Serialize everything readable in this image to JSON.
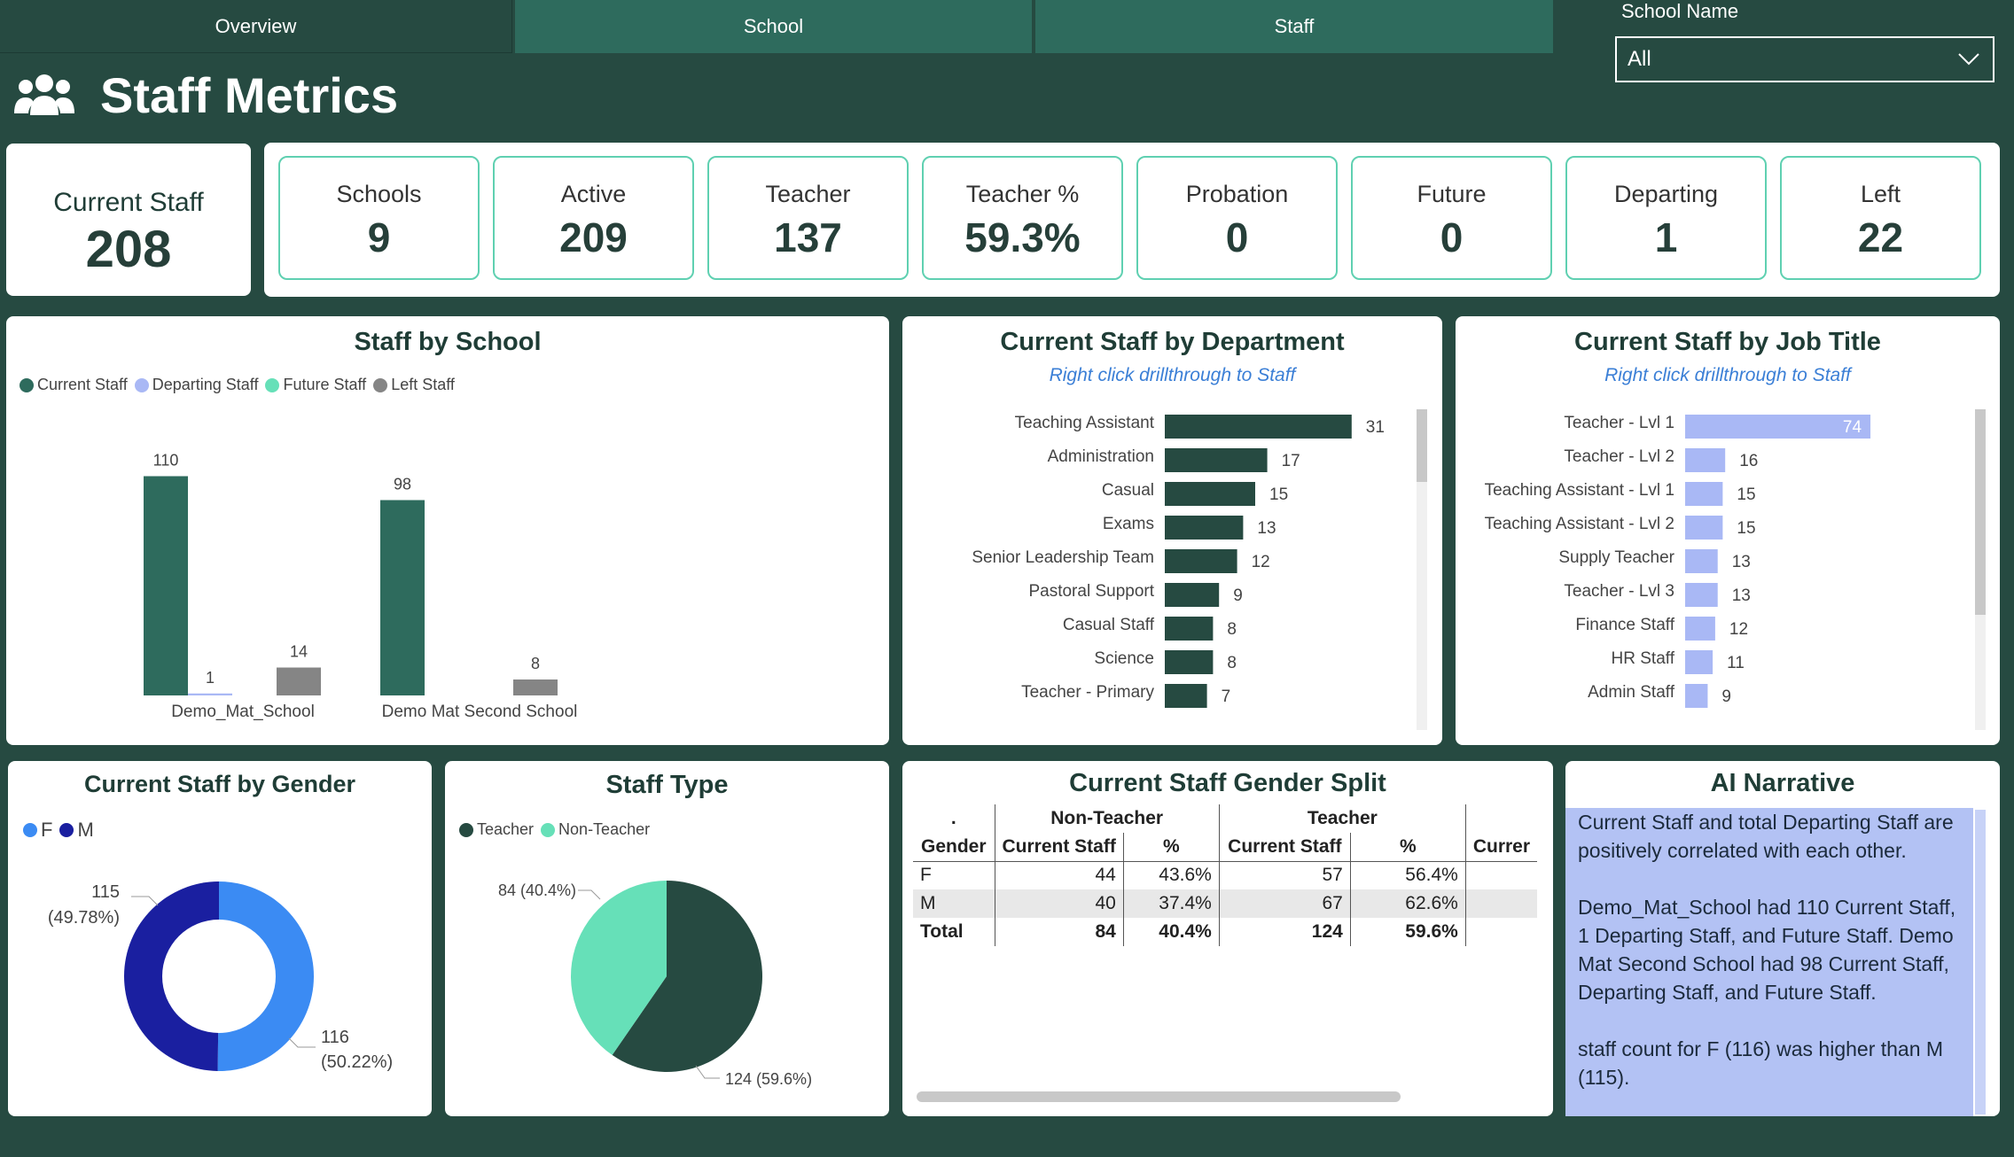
{
  "nav": {
    "tabs": [
      "Overview",
      "School",
      "Staff"
    ],
    "filter_label": "School Name",
    "filter_value": "All"
  },
  "header": {
    "title": "Staff Metrics"
  },
  "kpis": {
    "current_staff_label": "Current Staff",
    "current_staff_value": "208",
    "items": [
      {
        "label": "Schools",
        "value": "9"
      },
      {
        "label": "Active",
        "value": "209"
      },
      {
        "label": "Teacher",
        "value": "137"
      },
      {
        "label": "Teacher %",
        "value": "59.3%"
      },
      {
        "label": "Probation",
        "value": "0"
      },
      {
        "label": "Future",
        "value": "0"
      },
      {
        "label": "Departing",
        "value": "1"
      },
      {
        "label": "Left",
        "value": "22"
      }
    ]
  },
  "colors": {
    "background": "#264a41",
    "tab": "#2e6b5d",
    "current": "#2e6b5d",
    "departing": "#a9b8f5",
    "future": "#66e0b8",
    "left": "#858585",
    "dept_bar": "#264a41",
    "job_bar": "#a9b8f5",
    "female": "#3b8bf3",
    "male": "#1a1fa0",
    "teacher": "#264a41",
    "non_teacher": "#66e0b8",
    "narrative_bg": "#b3c2f4"
  },
  "staff_by_school": {
    "title": "Staff by School",
    "legend": [
      "Current Staff",
      "Departing Staff",
      "Future Staff",
      "Left Staff"
    ]
  },
  "dept_chart": {
    "title": "Current Staff by Department",
    "subtitle": "Right click drillthrough to Staff"
  },
  "job_chart": {
    "title": "Current Staff by Job Title",
    "subtitle": "Right click drillthrough to Staff"
  },
  "gender_chart": {
    "title": "Current Staff by Gender",
    "legend": [
      "F",
      "M"
    ]
  },
  "type_chart": {
    "title": "Staff Type",
    "legend": [
      "Teacher",
      "Non-Teacher"
    ]
  },
  "gender_split": {
    "title": "Current Staff Gender Split",
    "corner": ".",
    "groups": [
      "Non-Teacher",
      "Teacher"
    ],
    "headers": [
      "Gender",
      "Current Staff",
      "%",
      "Current Staff",
      "%",
      "Currer"
    ],
    "rows": [
      {
        "g": "F",
        "a": "44",
        "b": "43.6%",
        "c": "57",
        "d": "56.4%"
      },
      {
        "g": "M",
        "a": "40",
        "b": "37.4%",
        "c": "67",
        "d": "62.6%"
      },
      {
        "g": "Total",
        "a": "84",
        "b": "40.4%",
        "c": "124",
        "d": "59.6%"
      }
    ]
  },
  "narrative": {
    "title": "AI Narrative",
    "paragraphs": [
      "Current Staff and total Departing Staff are positively correlated with each other.",
      "Demo_Mat_School had 110 Current Staff, 1 Departing Staff, and  Future Staff. Demo Mat Second School had 98 Current Staff, Departing Staff, and  Future Staff.",
      "staff count for F (116) was higher than M (115)."
    ]
  },
  "chart_data": [
    {
      "type": "bar",
      "title": "Staff by School",
      "categories": [
        "Demo_Mat_School",
        "Demo Mat Second School"
      ],
      "series": [
        {
          "name": "Current Staff",
          "values": [
            110,
            98
          ]
        },
        {
          "name": "Departing Staff",
          "values": [
            1,
            null
          ]
        },
        {
          "name": "Future Staff",
          "values": [
            null,
            null
          ]
        },
        {
          "name": "Left Staff",
          "values": [
            14,
            8
          ]
        }
      ],
      "legend": "top-left",
      "ylim": [
        0,
        120
      ]
    },
    {
      "type": "bar",
      "orientation": "horizontal",
      "title": "Current Staff by Department",
      "categories": [
        "Teaching Assistant",
        "Administration",
        "Casual",
        "Exams",
        "Senior Leadership Team",
        "Pastoral Support",
        "Casual Staff",
        "Science",
        "Teacher - Primary"
      ],
      "values": [
        31,
        17,
        15,
        13,
        12,
        9,
        8,
        8,
        7
      ],
      "xlim": [
        0,
        35
      ]
    },
    {
      "type": "bar",
      "orientation": "horizontal",
      "title": "Current Staff by Job Title",
      "categories": [
        "Teacher - Lvl 1",
        "Teacher - Lvl 2",
        "Teaching Assistant - Lvl 1",
        "Teaching Assistant - Lvl 2",
        "Supply Teacher",
        "Teacher - Lvl 3",
        "Finance Staff",
        "HR Staff",
        "Admin Staff"
      ],
      "values": [
        74,
        16,
        15,
        15,
        13,
        13,
        12,
        11,
        9
      ],
      "xlim": [
        0,
        80
      ]
    },
    {
      "type": "pie",
      "donut": true,
      "title": "Current Staff by Gender",
      "categories": [
        "F",
        "M"
      ],
      "values": [
        116,
        115
      ],
      "labels": [
        "116\n(50.22%)",
        "115\n(49.78%)"
      ]
    },
    {
      "type": "pie",
      "title": "Staff Type",
      "categories": [
        "Teacher",
        "Non-Teacher"
      ],
      "values": [
        124,
        84
      ],
      "labels": [
        "124 (59.6%)",
        "84 (40.4%)"
      ]
    }
  ]
}
